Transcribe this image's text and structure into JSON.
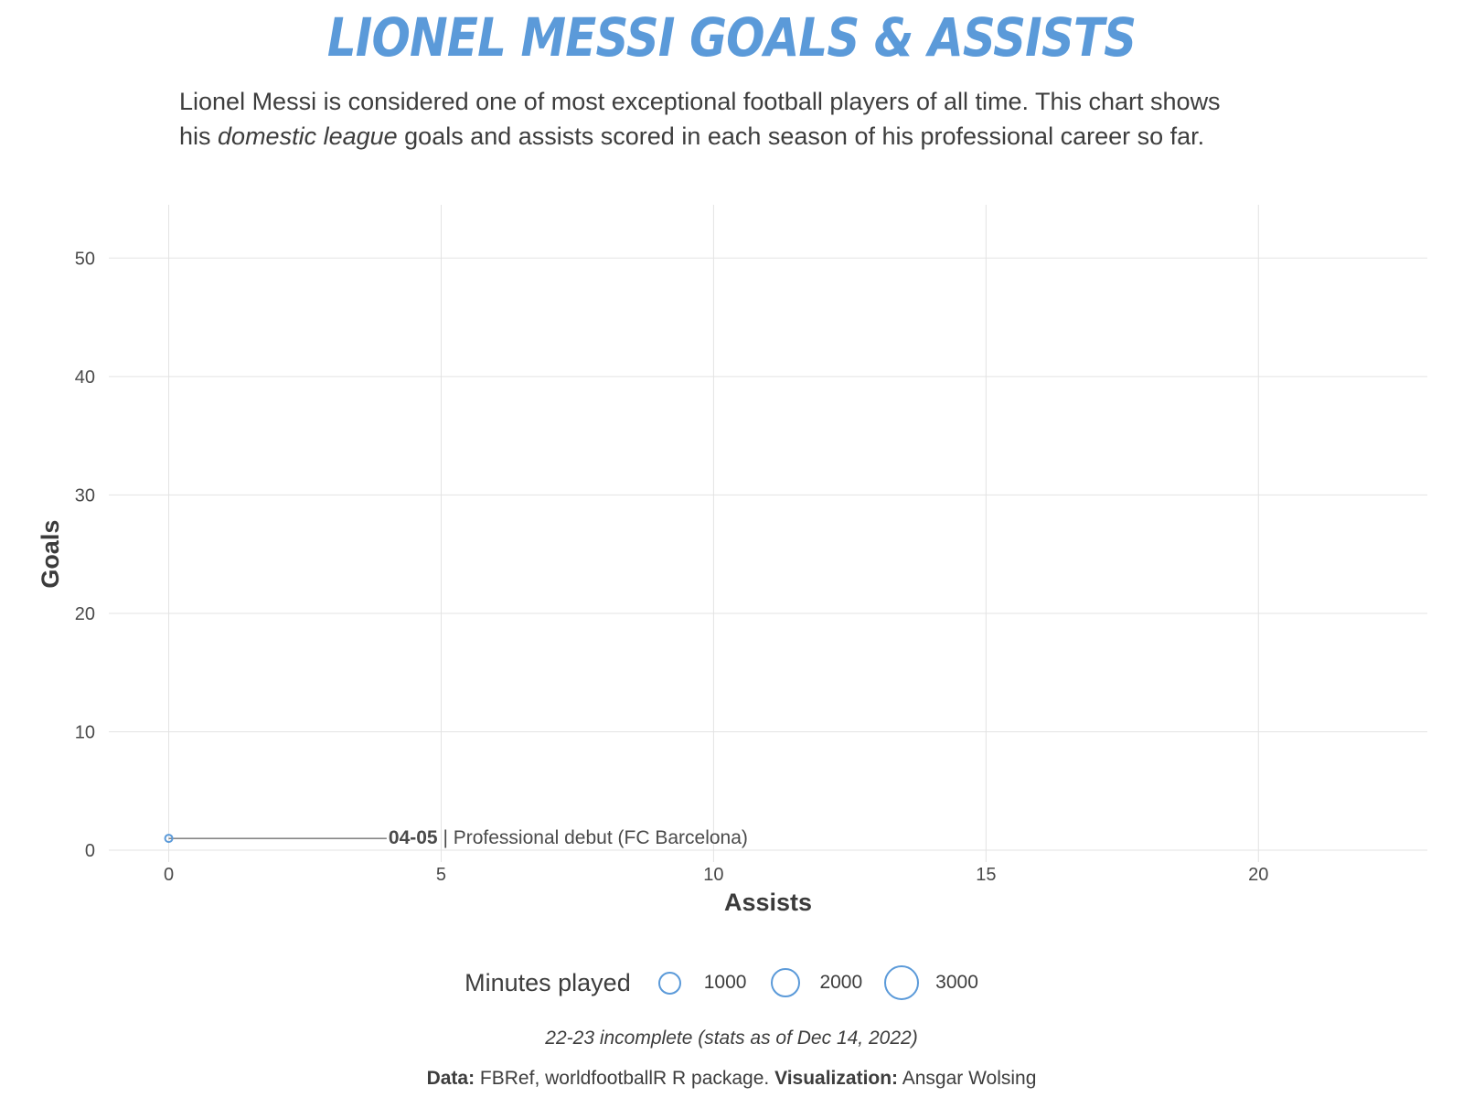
{
  "title": "LIONEL MESSI GOALS & ASSISTS",
  "subtitle": {
    "line1": "Lionel Messi is considered one of most exceptional football players of all time. This chart shows",
    "line2_pre": "his ",
    "line2_em": "domestic league",
    "line2_post": " goals and assists scored in each season of his professional career so far."
  },
  "chart_data": {
    "type": "scatter",
    "xlabel": "Assists",
    "ylabel": "Goals",
    "xlim": [
      -1.1,
      23.1
    ],
    "ylim": [
      -1,
      54.5
    ],
    "xticks": [
      0,
      5,
      10,
      15,
      20
    ],
    "yticks": [
      0,
      10,
      20,
      30,
      40,
      50
    ],
    "grid": true,
    "size_variable": "Minutes played",
    "points": [
      {
        "season": "04-05",
        "x": 0,
        "y": 1,
        "annotation": "Professional debut (FC Barcelona)"
      }
    ],
    "color": "#5b9ad9"
  },
  "legend": {
    "title": "Minutes played",
    "items": [
      {
        "label": "1000",
        "value": 1000
      },
      {
        "label": "2000",
        "value": 2000
      },
      {
        "label": "3000",
        "value": 3000
      }
    ]
  },
  "note": "22-23 incomplete (stats as of Dec 14, 2022)",
  "caption": {
    "data_label": "Data:",
    "data_text": " FBRef, worldfootballR R package. ",
    "viz_label": "Visualization:",
    "viz_text": " Ansgar Wolsing"
  }
}
